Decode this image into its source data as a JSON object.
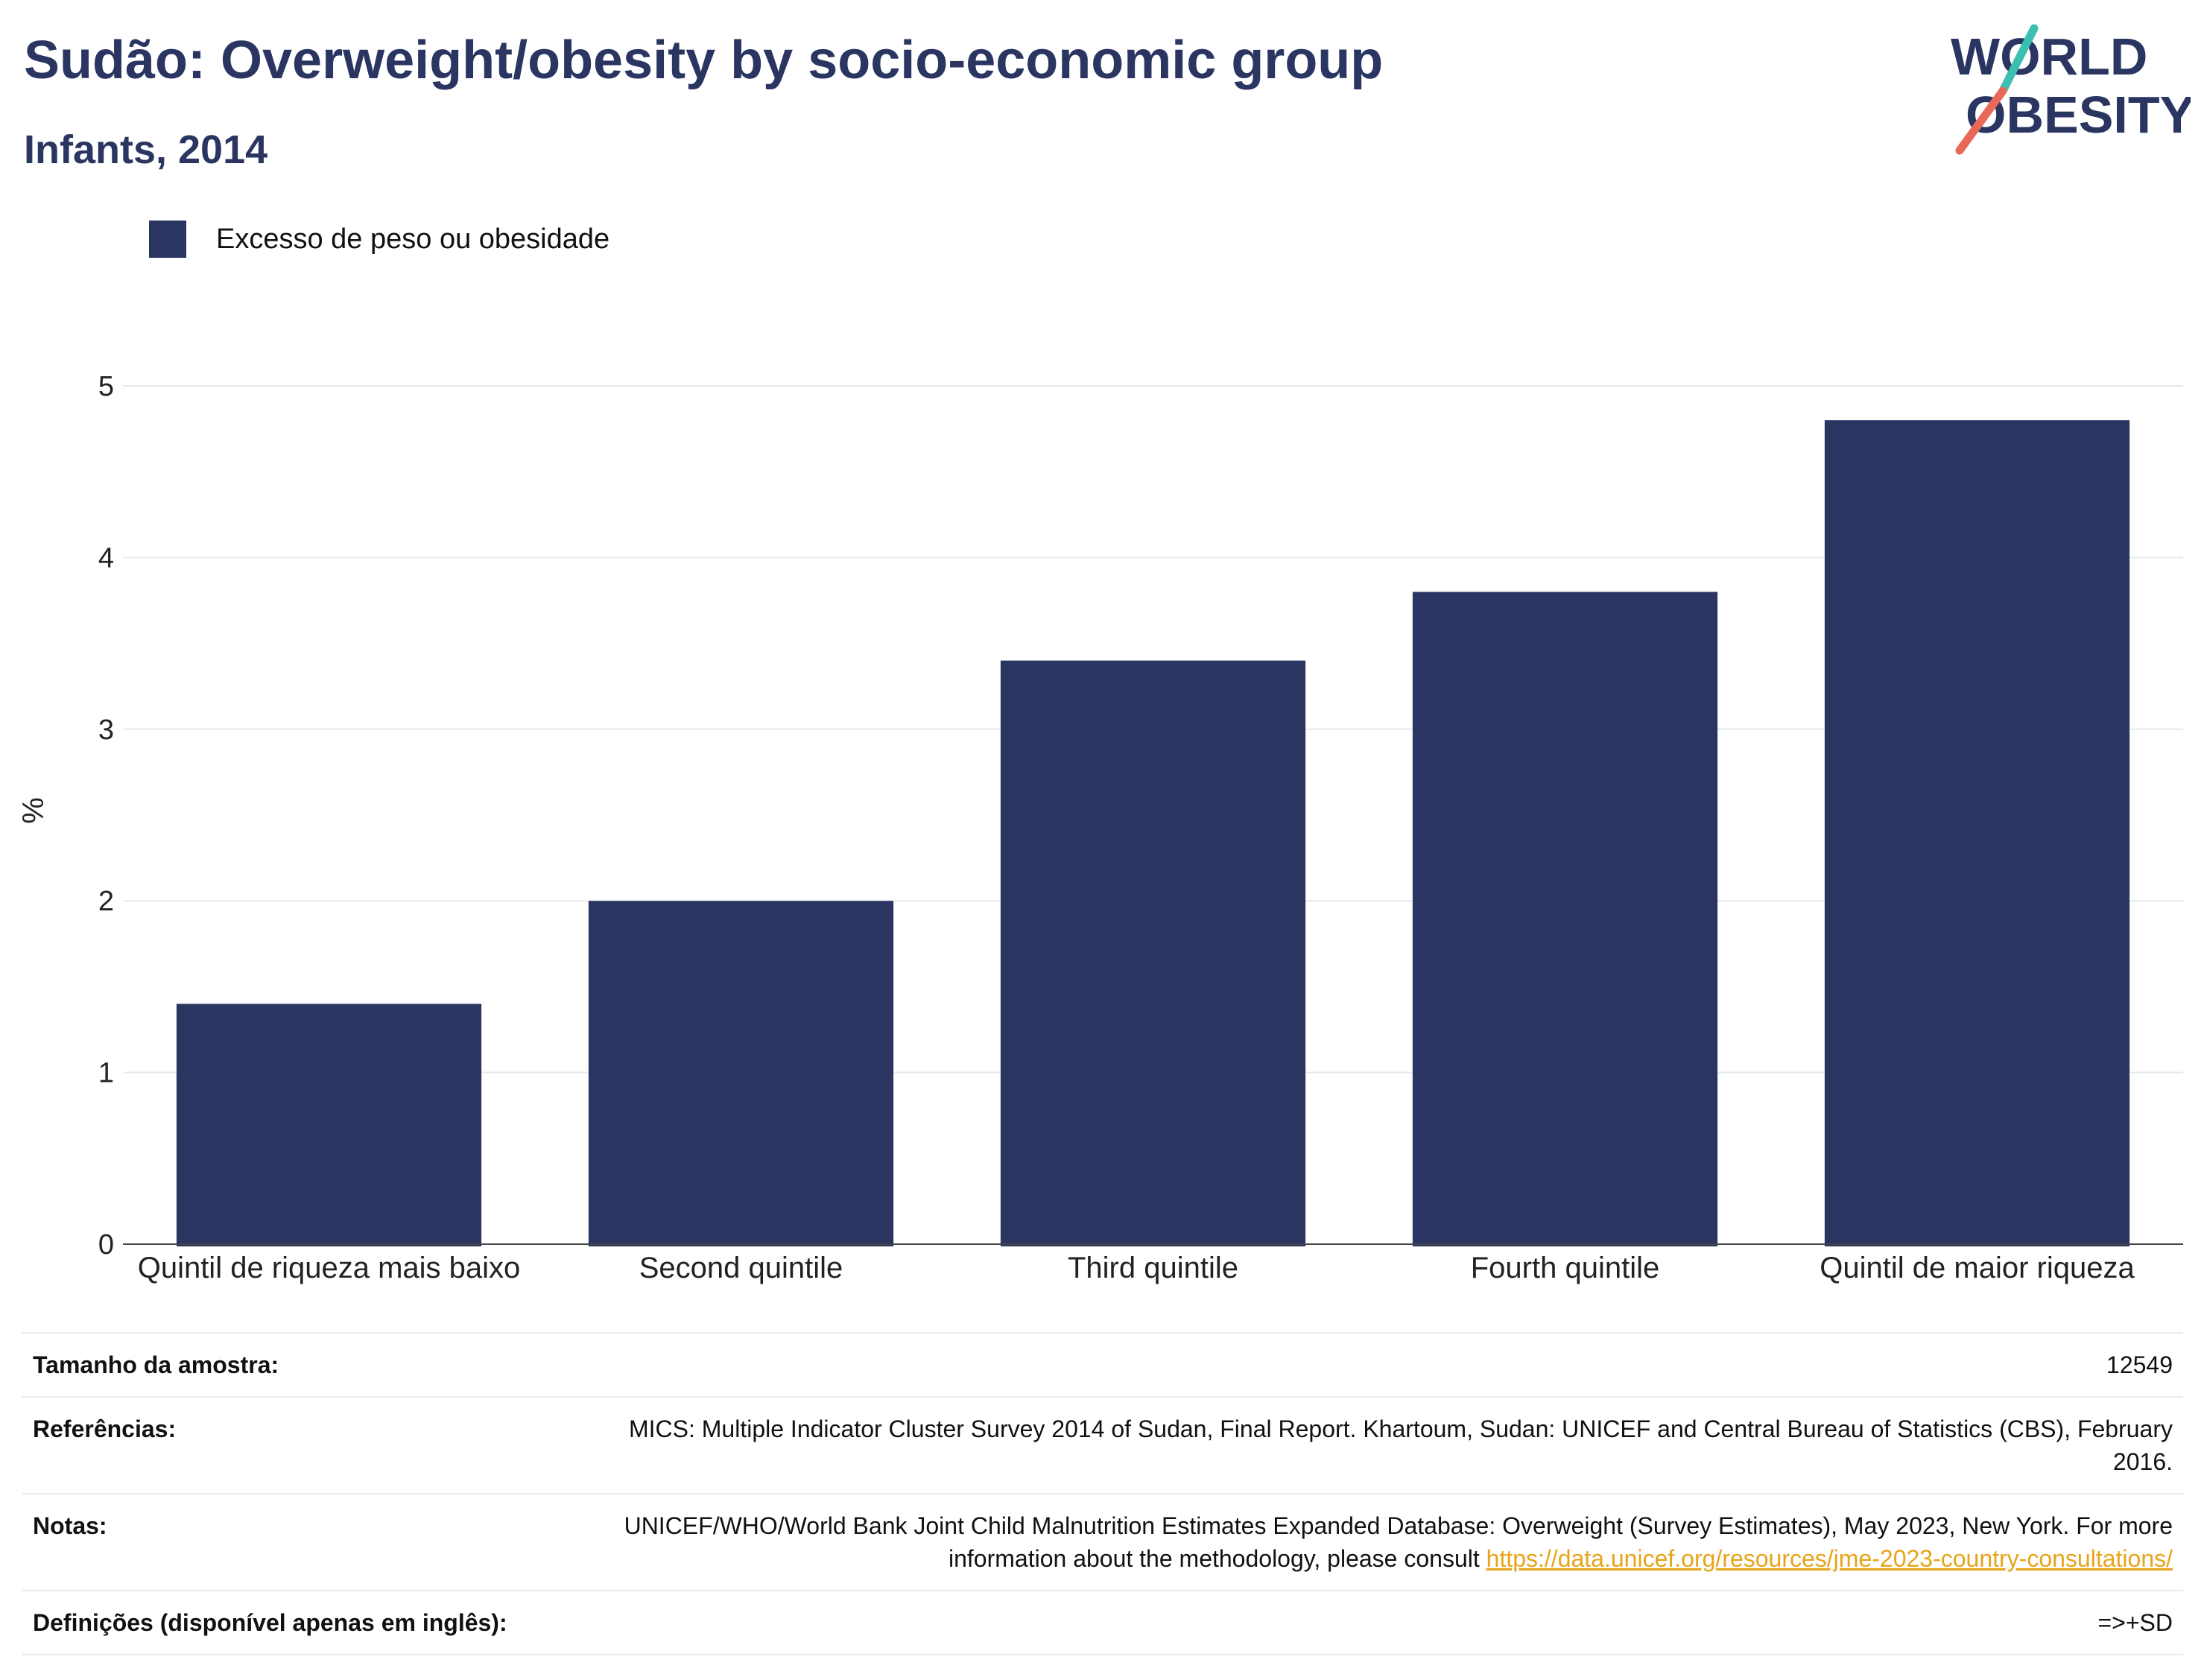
{
  "header": {
    "title": "Sudão: Overweight/obesity by socio-economic group",
    "subtitle": "Infants, 2014"
  },
  "logo": {
    "line1": "WORLD",
    "line2": "OBESITY"
  },
  "colors": {
    "bar": "#2a3561",
    "title": "#2a3561",
    "grid": "#e6e9f1",
    "link": "#e8a419",
    "logo_teal": "#3bbfb1",
    "logo_coral": "#e8685a"
  },
  "chart_data": {
    "type": "bar",
    "categories": [
      "Quintil de riqueza mais baixo",
      "Second quintile",
      "Third quintile",
      "Fourth quintile",
      "Quintil de maior riqueza"
    ],
    "series": [
      {
        "name": "Excesso de peso ou obesidade",
        "values": [
          1.4,
          2.0,
          3.4,
          3.8,
          4.8
        ]
      }
    ],
    "ylabel": "%",
    "ylim": [
      0,
      5
    ],
    "yticks": [
      0,
      1,
      2,
      3,
      4,
      5
    ],
    "grid": true,
    "legend": "top-left"
  },
  "meta": {
    "sample_label": "Tamanho da amostra:",
    "sample_value": "12549",
    "refs_label": "Referências:",
    "refs_value": "MICS: Multiple Indicator Cluster Survey 2014 of Sudan, Final Report. Khartoum, Sudan: UNICEF and Central Bureau of Statistics (CBS), February 2016.",
    "notes_label": "Notas:",
    "notes_value": "UNICEF/WHO/World Bank Joint Child Malnutrition Estimates Expanded Database: Overweight (Survey Estimates), May 2023, New York. For more information about the methodology, please consult",
    "notes_link": "https://data.unicef.org/resources/jme-2023-country-consultations/",
    "defs_label": "Definições (disponível apenas em inglês):",
    "defs_value": "=>+SD"
  }
}
